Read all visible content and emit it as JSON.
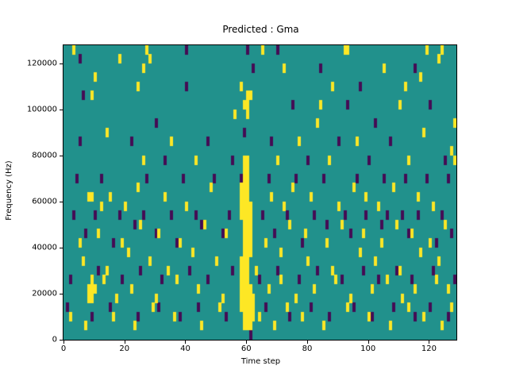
{
  "chart_data": {
    "type": "heatmap",
    "title": "Predicted : Gma",
    "xlabel": "Time step",
    "ylabel": "Frequency (Hz)",
    "xlim": [
      0,
      129
    ],
    "ylim": [
      0,
      128000
    ],
    "x_ticks": [
      0,
      20,
      40,
      60,
      80,
      100,
      120
    ],
    "y_ticks": [
      0,
      20000,
      40000,
      60000,
      80000,
      100000,
      120000
    ],
    "grid": false,
    "legend": false,
    "colormap": "viridis",
    "colors": {
      "mid": "#21918c",
      "high": "#fde725",
      "low": "#440c54"
    },
    "cell": {
      "cols": 129,
      "rows": 32,
      "row_height_hz": 4000
    },
    "high_cells": [
      [
        59,
        1
      ],
      [
        59,
        2
      ],
      [
        59,
        3
      ],
      [
        59,
        4
      ],
      [
        59,
        5
      ],
      [
        59,
        6
      ],
      [
        59,
        7
      ],
      [
        59,
        8
      ],
      [
        59,
        9
      ],
      [
        59,
        10
      ],
      [
        59,
        11
      ],
      [
        59,
        12
      ],
      [
        59,
        13
      ],
      [
        59,
        14
      ],
      [
        59,
        15
      ],
      [
        59,
        16
      ],
      [
        59,
        17
      ],
      [
        59,
        18
      ],
      [
        59,
        19
      ],
      [
        60,
        1
      ],
      [
        60,
        2
      ],
      [
        60,
        3
      ],
      [
        60,
        4
      ],
      [
        60,
        5
      ],
      [
        60,
        6
      ],
      [
        60,
        7
      ],
      [
        60,
        8
      ],
      [
        60,
        9
      ],
      [
        60,
        10
      ],
      [
        60,
        11
      ],
      [
        60,
        12
      ],
      [
        60,
        13
      ],
      [
        60,
        14
      ],
      [
        60,
        15
      ],
      [
        60,
        16
      ],
      [
        60,
        17
      ],
      [
        60,
        18
      ],
      [
        60,
        19
      ],
      [
        58,
        3
      ],
      [
        58,
        4
      ],
      [
        58,
        5
      ],
      [
        58,
        6
      ],
      [
        58,
        7
      ],
      [
        58,
        8
      ],
      [
        58,
        13
      ],
      [
        58,
        14
      ],
      [
        58,
        15
      ],
      [
        58,
        16
      ],
      [
        61,
        1
      ],
      [
        61,
        2
      ],
      [
        61,
        3
      ],
      [
        61,
        4
      ],
      [
        61,
        5
      ],
      [
        61,
        9
      ],
      [
        61,
        10
      ],
      [
        61,
        11
      ],
      [
        61,
        12
      ],
      [
        61,
        13
      ],
      [
        61,
        14
      ],
      [
        62,
        2
      ],
      [
        62,
        3
      ],
      [
        62,
        4
      ],
      [
        59,
        25
      ],
      [
        60,
        24
      ],
      [
        60,
        25
      ],
      [
        60,
        26
      ],
      [
        61,
        26
      ],
      [
        58,
        27
      ],
      [
        3,
        31
      ],
      [
        27,
        31
      ],
      [
        65,
        31
      ],
      [
        92,
        31
      ],
      [
        93,
        31
      ],
      [
        119,
        31
      ],
      [
        123,
        30
      ],
      [
        124,
        31
      ],
      [
        18,
        30
      ],
      [
        26,
        29
      ],
      [
        28,
        30
      ],
      [
        72,
        29
      ],
      [
        105,
        29
      ],
      [
        10,
        28
      ],
      [
        24,
        27
      ],
      [
        88,
        27
      ],
      [
        112,
        27
      ],
      [
        117,
        28
      ],
      [
        9,
        26
      ],
      [
        84,
        25
      ],
      [
        110,
        25
      ],
      [
        56,
        24
      ],
      [
        83,
        23
      ],
      [
        128,
        23
      ],
      [
        14,
        22
      ],
      [
        35,
        21
      ],
      [
        77,
        21
      ],
      [
        96,
        21
      ],
      [
        118,
        22
      ],
      [
        127,
        20
      ],
      [
        26,
        19
      ],
      [
        43,
        19
      ],
      [
        70,
        19
      ],
      [
        87,
        19
      ],
      [
        113,
        19
      ],
      [
        128,
        19
      ],
      [
        8,
        15
      ],
      [
        9,
        15
      ],
      [
        12,
        14
      ],
      [
        15,
        15
      ],
      [
        20,
        14
      ],
      [
        24,
        16
      ],
      [
        33,
        15
      ],
      [
        40,
        14
      ],
      [
        48,
        16
      ],
      [
        68,
        15
      ],
      [
        72,
        14
      ],
      [
        75,
        16
      ],
      [
        81,
        15
      ],
      [
        90,
        14
      ],
      [
        95,
        16
      ],
      [
        99,
        15
      ],
      [
        103,
        14
      ],
      [
        108,
        16
      ],
      [
        116,
        15
      ],
      [
        121,
        14
      ],
      [
        5,
        10
      ],
      [
        11,
        11
      ],
      [
        19,
        10
      ],
      [
        25,
        12
      ],
      [
        31,
        11
      ],
      [
        38,
        10
      ],
      [
        46,
        12
      ],
      [
        53,
        11
      ],
      [
        66,
        10
      ],
      [
        74,
        12
      ],
      [
        79,
        11
      ],
      [
        86,
        10
      ],
      [
        91,
        12
      ],
      [
        98,
        11
      ],
      [
        104,
        10
      ],
      [
        109,
        12
      ],
      [
        114,
        11
      ],
      [
        120,
        10
      ],
      [
        125,
        12
      ],
      [
        6,
        8
      ],
      [
        14,
        7
      ],
      [
        21,
        9
      ],
      [
        28,
        8
      ],
      [
        34,
        7
      ],
      [
        42,
        9
      ],
      [
        50,
        8
      ],
      [
        63,
        7
      ],
      [
        71,
        9
      ],
      [
        80,
        8
      ],
      [
        88,
        7
      ],
      [
        97,
        9
      ],
      [
        102,
        8
      ],
      [
        110,
        7
      ],
      [
        117,
        9
      ],
      [
        123,
        8
      ],
      [
        8,
        5
      ],
      [
        8,
        4
      ],
      [
        9,
        5
      ],
      [
        9,
        4
      ],
      [
        9,
        6
      ],
      [
        10,
        5
      ],
      [
        13,
        6
      ],
      [
        17,
        4
      ],
      [
        22,
        5
      ],
      [
        30,
        4
      ],
      [
        37,
        6
      ],
      [
        44,
        5
      ],
      [
        52,
        4
      ],
      [
        67,
        5
      ],
      [
        71,
        6
      ],
      [
        76,
        4
      ],
      [
        82,
        5
      ],
      [
        89,
        6
      ],
      [
        94,
        4
      ],
      [
        101,
        5
      ],
      [
        106,
        6
      ],
      [
        111,
        4
      ],
      [
        115,
        5
      ],
      [
        122,
        6
      ],
      [
        126,
        5
      ],
      [
        2,
        2
      ],
      [
        7,
        1
      ],
      [
        16,
        2
      ],
      [
        23,
        1
      ],
      [
        29,
        3
      ],
      [
        36,
        2
      ],
      [
        45,
        1
      ],
      [
        51,
        3
      ],
      [
        64,
        2
      ],
      [
        69,
        1
      ],
      [
        73,
        3
      ],
      [
        78,
        2
      ],
      [
        85,
        1
      ],
      [
        93,
        3
      ],
      [
        100,
        2
      ],
      [
        107,
        1
      ],
      [
        113,
        3
      ],
      [
        118,
        2
      ],
      [
        124,
        1
      ],
      [
        127,
        3
      ]
    ],
    "low_cells": [
      [
        5,
        30
      ],
      [
        40,
        31
      ],
      [
        60,
        31
      ],
      [
        70,
        31
      ],
      [
        84,
        29
      ],
      [
        115,
        29
      ],
      [
        62,
        29
      ],
      [
        97,
        27
      ],
      [
        40,
        27
      ],
      [
        6,
        26
      ],
      [
        75,
        25
      ],
      [
        93,
        25
      ],
      [
        120,
        25
      ],
      [
        30,
        23
      ],
      [
        102,
        23
      ],
      [
        5,
        21
      ],
      [
        22,
        21
      ],
      [
        47,
        21
      ],
      [
        68,
        21
      ],
      [
        90,
        21
      ],
      [
        107,
        21
      ],
      [
        33,
        19
      ],
      [
        55,
        19
      ],
      [
        80,
        19
      ],
      [
        100,
        19
      ],
      [
        125,
        19
      ],
      [
        4,
        17
      ],
      [
        12,
        17
      ],
      [
        27,
        17
      ],
      [
        39,
        17
      ],
      [
        49,
        17
      ],
      [
        58,
        17
      ],
      [
        67,
        17
      ],
      [
        76,
        17
      ],
      [
        85,
        17
      ],
      [
        96,
        17
      ],
      [
        105,
        17
      ],
      [
        112,
        17
      ],
      [
        119,
        17
      ],
      [
        126,
        17
      ],
      [
        3,
        13
      ],
      [
        10,
        13
      ],
      [
        18,
        13
      ],
      [
        26,
        13
      ],
      [
        35,
        13
      ],
      [
        43,
        13
      ],
      [
        54,
        13
      ],
      [
        65,
        13
      ],
      [
        73,
        13
      ],
      [
        82,
        13
      ],
      [
        92,
        13
      ],
      [
        99,
        13
      ],
      [
        106,
        13
      ],
      [
        111,
        13
      ],
      [
        116,
        13
      ],
      [
        124,
        13
      ],
      [
        2,
        6
      ],
      [
        11,
        7
      ],
      [
        19,
        6
      ],
      [
        25,
        7
      ],
      [
        32,
        6
      ],
      [
        41,
        7
      ],
      [
        47,
        6
      ],
      [
        55,
        7
      ],
      [
        64,
        6
      ],
      [
        70,
        7
      ],
      [
        77,
        6
      ],
      [
        83,
        7
      ],
      [
        91,
        6
      ],
      [
        98,
        7
      ],
      [
        103,
        6
      ],
      [
        109,
        7
      ],
      [
        114,
        6
      ],
      [
        121,
        7
      ],
      [
        128,
        6
      ],
      [
        1,
        3
      ],
      [
        9,
        2
      ],
      [
        15,
        3
      ],
      [
        24,
        2
      ],
      [
        31,
        3
      ],
      [
        38,
        2
      ],
      [
        44,
        3
      ],
      [
        53,
        2
      ],
      [
        61,
        0
      ],
      [
        66,
        3
      ],
      [
        74,
        2
      ],
      [
        81,
        3
      ],
      [
        87,
        2
      ],
      [
        95,
        3
      ],
      [
        101,
        2
      ],
      [
        108,
        3
      ],
      [
        115,
        2
      ],
      [
        120,
        3
      ],
      [
        126,
        2
      ],
      [
        7,
        11
      ],
      [
        16,
        10
      ],
      [
        23,
        12
      ],
      [
        30,
        11
      ],
      [
        37,
        10
      ],
      [
        45,
        12
      ],
      [
        52,
        11
      ],
      [
        59,
        22
      ],
      [
        69,
        11
      ],
      [
        78,
        10
      ],
      [
        86,
        12
      ],
      [
        94,
        11
      ],
      [
        104,
        12
      ],
      [
        113,
        11
      ],
      [
        122,
        10
      ],
      [
        127,
        11
      ]
    ]
  }
}
